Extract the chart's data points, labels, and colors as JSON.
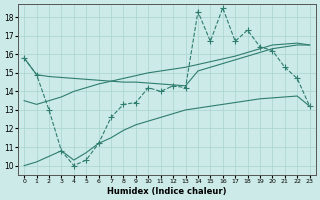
{
  "xlabel": "Humidex (Indice chaleur)",
  "xlim": [
    -0.5,
    23.5
  ],
  "ylim": [
    9.5,
    18.7
  ],
  "xticks": [
    0,
    1,
    2,
    3,
    4,
    5,
    6,
    7,
    8,
    9,
    10,
    11,
    12,
    13,
    14,
    15,
    16,
    17,
    18,
    19,
    20,
    21,
    22,
    23
  ],
  "yticks": [
    10,
    11,
    12,
    13,
    14,
    15,
    16,
    17,
    18
  ],
  "background_color": "#cceae7",
  "grid_color": "#aad4d0",
  "line_color": "#2e7d6e",
  "line1_x": [
    0,
    1,
    2,
    3,
    4,
    5,
    6,
    7,
    8,
    9,
    10,
    11,
    12,
    13,
    14,
    15,
    16,
    17,
    18,
    19,
    20,
    21,
    22,
    23
  ],
  "line1_y": [
    15.8,
    14.9,
    14.8,
    14.75,
    14.7,
    14.65,
    14.6,
    14.55,
    14.5,
    14.5,
    14.45,
    14.4,
    14.35,
    14.3,
    15.1,
    15.3,
    15.5,
    15.7,
    15.9,
    16.1,
    16.3,
    16.4,
    16.5,
    16.5
  ],
  "line2_x": [
    0,
    1,
    2,
    3,
    4,
    5,
    6,
    7,
    8,
    9,
    10,
    11,
    12,
    13,
    14,
    15,
    16,
    17,
    18,
    19,
    20,
    21,
    22,
    23
  ],
  "line2_y": [
    13.5,
    13.3,
    13.5,
    13.7,
    14.0,
    14.2,
    14.4,
    14.55,
    14.7,
    14.85,
    15.0,
    15.1,
    15.2,
    15.3,
    15.45,
    15.6,
    15.75,
    15.9,
    16.1,
    16.3,
    16.5,
    16.55,
    16.6,
    16.5
  ],
  "line3_x": [
    0,
    1,
    2,
    3,
    4,
    5,
    6,
    7,
    8,
    9,
    10,
    11,
    12,
    13,
    14,
    15,
    16,
    17,
    18,
    19,
    20,
    21,
    22,
    23
  ],
  "line3_y": [
    10.0,
    10.2,
    10.5,
    10.8,
    10.3,
    10.7,
    11.2,
    11.5,
    11.9,
    12.2,
    12.4,
    12.6,
    12.8,
    13.0,
    13.1,
    13.2,
    13.3,
    13.4,
    13.5,
    13.6,
    13.65,
    13.7,
    13.75,
    13.2
  ],
  "line4_x": [
    0,
    1,
    2,
    3,
    4,
    5,
    6,
    7,
    8,
    9,
    10,
    11,
    12,
    13,
    14,
    15,
    16,
    17,
    18,
    19,
    20,
    21,
    22,
    23
  ],
  "line4_y": [
    15.8,
    14.9,
    13.0,
    10.8,
    10.0,
    10.3,
    11.2,
    12.6,
    13.3,
    13.4,
    14.2,
    14.0,
    14.3,
    14.2,
    18.3,
    16.7,
    18.5,
    16.7,
    17.3,
    16.4,
    16.2,
    15.3,
    14.7,
    13.2
  ]
}
